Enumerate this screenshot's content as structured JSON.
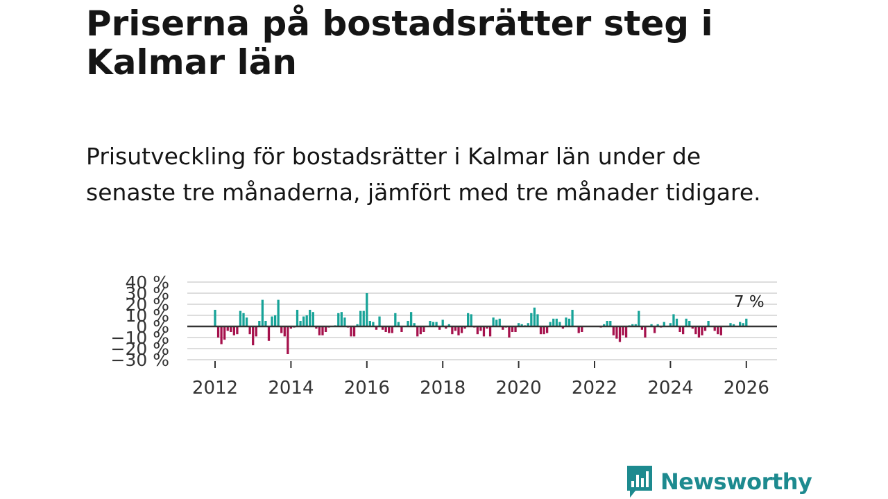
{
  "header": {
    "title": "Priserna på bostadsrätter steg i Kalmar län",
    "subtitle": "Prisutveckling för bostadsrätter i Kalmar län under de senaste tre månaderna, jämfört med tre månader tidigare."
  },
  "brand": {
    "name": "Newsworthy",
    "color": "#1d8a8f"
  },
  "colors": {
    "positive": "#17a398",
    "negative": "#a5114c",
    "grid": "#dddddd",
    "zero": "#333333"
  },
  "chart_data": {
    "type": "bar",
    "title": "Priserna på bostadsrätter steg i Kalmar län",
    "xlabel": "",
    "ylabel": "",
    "ylim": [
      -30,
      40
    ],
    "yticks": [
      40,
      30,
      20,
      10,
      0,
      -10,
      -20,
      -30
    ],
    "ytick_labels": [
      "40 %",
      "30 %",
      "20 %",
      "10 %",
      "0 %",
      "−10 %",
      "−20 %",
      "−30 %"
    ],
    "xticks": [
      2012,
      2014,
      2016,
      2018,
      2020,
      2022,
      2024,
      2026
    ],
    "xtick_labels": [
      "2012",
      "2014",
      "2016",
      "2018",
      "2020",
      "2022",
      "2024",
      "2026"
    ],
    "grid": true,
    "start": "2012-01",
    "annotation": {
      "text": "7 %",
      "target": "last"
    },
    "values": [
      15,
      -10,
      -16,
      -12,
      -4,
      -5,
      -8,
      -7,
      14,
      12,
      8,
      -7,
      -17,
      -9,
      5,
      24,
      5,
      -13,
      9,
      10,
      24,
      -6,
      -9,
      -25,
      -2,
      -1,
      15,
      5,
      9,
      10,
      15,
      13,
      -2,
      -8,
      -8,
      -5,
      -1,
      0,
      1,
      12,
      13,
      8,
      -1,
      -9,
      -9,
      2,
      14,
      14,
      30,
      5,
      4,
      -3,
      9,
      -3,
      -5,
      -6,
      -6,
      12,
      4,
      -5,
      0,
      5,
      13,
      3,
      -9,
      -7,
      -5,
      0,
      5,
      4,
      4,
      -3,
      6,
      -2,
      2,
      -7,
      -4,
      -8,
      -6,
      -2,
      12,
      11,
      -1,
      -7,
      -4,
      -9,
      -2,
      -9,
      8,
      6,
      7,
      -3,
      -1,
      -10,
      -5,
      -5,
      3,
      2,
      1,
      3,
      12,
      17,
      11,
      -7,
      -7,
      -6,
      4,
      7,
      7,
      4,
      -2,
      8,
      7,
      15,
      0,
      -6,
      -5,
      0,
      0,
      0,
      0,
      0,
      -1,
      2,
      5,
      5,
      -8,
      -11,
      -14,
      -8,
      -10,
      1,
      2,
      2,
      14,
      -3,
      -10,
      0,
      2,
      -6,
      2,
      -1,
      4,
      0,
      3,
      11,
      7,
      -5,
      -7,
      7,
      5,
      -2,
      -7,
      -10,
      -8,
      -4,
      5,
      0,
      -4,
      -7,
      -8,
      0,
      0,
      3,
      2,
      0,
      4,
      3,
      7
    ]
  }
}
